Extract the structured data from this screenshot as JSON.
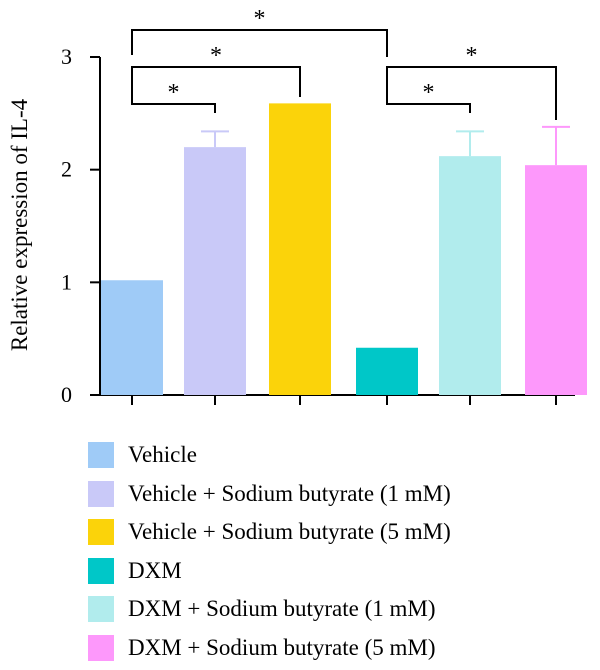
{
  "chart_data": {
    "type": "bar",
    "ylabel": "Relative expression of IL-4",
    "ylim": [
      0,
      3
    ],
    "yticks": [
      0,
      1,
      2,
      3
    ],
    "grid": false,
    "legend_position": "bottom",
    "series": [
      {
        "name": "Vehicle",
        "value": 1.01,
        "error": 0,
        "color": "#9fcbf7"
      },
      {
        "name": "Vehicle + Sodium butyrate (1 mM)",
        "value": 2.2,
        "error": 0.14,
        "color": "#c9c9f8"
      },
      {
        "name": "Vehicle + Sodium butyrate (5 mM)",
        "value": 2.58,
        "error": 0.0,
        "color": "#fbd30a"
      },
      {
        "name": "DXM",
        "value": 0.41,
        "error": 0,
        "color": "#00c7c8"
      },
      {
        "name": "DXM + Sodium butyrate (1 mM)",
        "value": 2.12,
        "error": 0.22,
        "color": "#b1eced"
      },
      {
        "name": "DXM + Sodium butyrate (5 mM)",
        "value": 2.04,
        "error": 0.34,
        "color": "#fd98fb"
      }
    ],
    "significance": [
      {
        "from": 0,
        "to": 1,
        "label": "*"
      },
      {
        "from": 0,
        "to": 2,
        "label": "*"
      },
      {
        "from": 0,
        "to": 3,
        "label": "*"
      },
      {
        "from": 3,
        "to": 4,
        "label": "*"
      },
      {
        "from": 3,
        "to": 5,
        "label": "*"
      }
    ]
  }
}
